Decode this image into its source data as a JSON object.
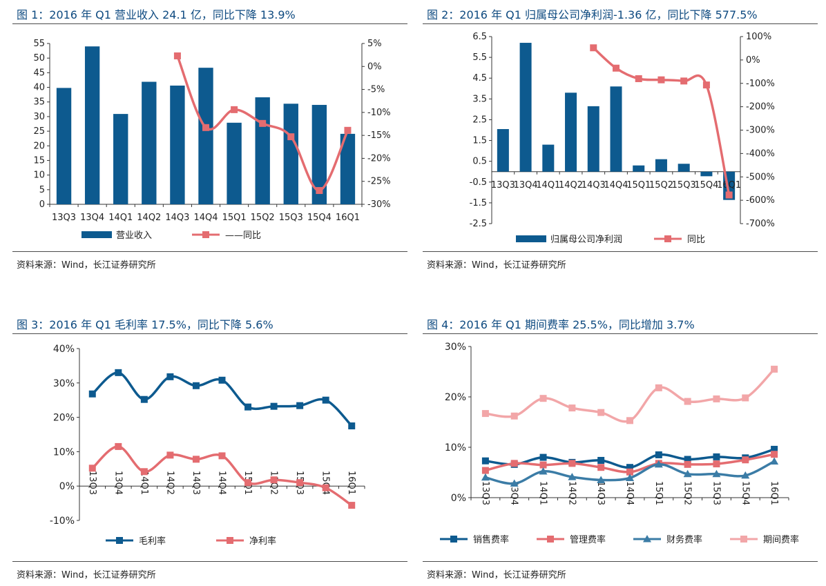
{
  "colors": {
    "navy": "#0d5a8f",
    "red": "#e46c70",
    "pink": "#f2a6a8",
    "blue2": "#3b7ca6",
    "title": "#0e4a80"
  },
  "charts": [
    {
      "title": "图 1：2016 年 Q1 营业收入 24.1 亿，同比下降 13.9%",
      "source": "资料来源：Wind，长江证券研究所",
      "legend": [
        {
          "label": "营业收入",
          "kind": "bar",
          "color": "#0d5a8f"
        },
        {
          "label": "——同比",
          "kind": "line",
          "color": "#e46c70"
        }
      ]
    },
    {
      "title": "图 2：2016 年 Q1 归属母公司净利润-1.36 亿，同比下降 577.5%",
      "source": "资料来源：Wind，长江证券研究所",
      "legend": [
        {
          "label": "归属母公司净利润",
          "kind": "bar",
          "color": "#0d5a8f"
        },
        {
          "label": "同比",
          "kind": "line",
          "color": "#e46c70"
        }
      ]
    },
    {
      "title": "图 3：2016 年 Q1 毛利率 17.5%，同比下降 5.6%",
      "source": "资料来源：Wind，长江证券研究所",
      "legend": [
        {
          "label": "毛利率",
          "kind": "line",
          "color": "#0d5a8f"
        },
        {
          "label": "净利率",
          "kind": "line",
          "color": "#e46c70"
        }
      ]
    },
    {
      "title": "图 4：2016 年 Q1 期间费率 25.5%，同比增加 3.7%",
      "source": "资料来源：Wind，长江证券研究所",
      "legend": [
        {
          "label": "销售费率",
          "kind": "line",
          "color": "#0d5a8f"
        },
        {
          "label": "管理费率",
          "kind": "line",
          "color": "#e46c70"
        },
        {
          "label": "财务费率",
          "kind": "line",
          "color": "#3b7ca6"
        },
        {
          "label": "期间费率",
          "kind": "line",
          "color": "#f2a6a8"
        }
      ]
    }
  ],
  "chart_data": [
    {
      "type": "bar",
      "categories": [
        "13Q3",
        "13Q4",
        "14Q1",
        "14Q2",
        "14Q3",
        "14Q4",
        "15Q1",
        "15Q2",
        "15Q3",
        "15Q4",
        "16Q1"
      ],
      "series": [
        {
          "name": "营业收入",
          "type": "bar",
          "axis": "left",
          "color": "#0d5a8f",
          "values": [
            39.8,
            54.0,
            30.9,
            41.9,
            40.6,
            46.7,
            27.9,
            36.6,
            34.4,
            34.0,
            24.1
          ]
        },
        {
          "name": "同比",
          "type": "line",
          "axis": "right",
          "color": "#e46c70",
          "values": [
            null,
            null,
            null,
            null,
            2.3,
            -13.3,
            -9.4,
            -12.4,
            -15.3,
            -27.0,
            -13.9
          ]
        }
      ],
      "yleft": {
        "min": 0,
        "max": 55,
        "ticks": [
          0,
          5,
          10,
          15,
          20,
          25,
          30,
          35,
          40,
          45,
          50,
          55
        ],
        "labels": [
          "0",
          "5",
          "10",
          "15",
          "20",
          "25",
          "30",
          "35",
          "40",
          "45",
          "50",
          "55"
        ]
      },
      "yright": {
        "min": -30,
        "max": 5,
        "ticks": [
          5,
          0,
          -5,
          -10,
          -15,
          -20,
          -25,
          -30
        ],
        "labels": [
          "5%",
          "0%",
          "-5%",
          "-10%",
          "-15%",
          "-20%",
          "-25%",
          "-30%"
        ]
      }
    },
    {
      "type": "bar",
      "categories": [
        "13Q3",
        "13Q4",
        "14Q1",
        "14Q2",
        "14Q3",
        "14Q4",
        "15Q1",
        "15Q2",
        "15Q3",
        "15Q4",
        "16Q1"
      ],
      "series": [
        {
          "name": "归属母公司净利润",
          "type": "bar",
          "axis": "left",
          "color": "#0d5a8f",
          "values": [
            2.05,
            6.2,
            1.3,
            3.8,
            3.15,
            4.1,
            0.3,
            0.6,
            0.38,
            -0.22,
            -1.36
          ]
        },
        {
          "name": "同比",
          "type": "line",
          "axis": "right",
          "color": "#e46c70",
          "values": [
            null,
            null,
            null,
            null,
            52,
            -35,
            -80,
            -85,
            -90,
            -107,
            -577.5
          ]
        }
      ],
      "yleft": {
        "min": -2.5,
        "max": 6.5,
        "ticks": [
          6.5,
          5.5,
          4.5,
          3.5,
          2.5,
          1.5,
          0.5,
          -0.5,
          -1.5,
          -2.5
        ],
        "labels": [
          "6.5",
          "5.5",
          "4.5",
          "3.5",
          "2.5",
          "1.5",
          "0.5",
          "-0.5",
          "-1.5",
          "-2.5"
        ]
      },
      "yright": {
        "min": -700,
        "max": 100,
        "ticks": [
          100,
          0,
          -100,
          -200,
          -300,
          -400,
          -500,
          -600,
          -700
        ],
        "labels": [
          "100%",
          "0%",
          "-100%",
          "-200%",
          "-300%",
          "-400%",
          "-500%",
          "-600%",
          "-700%"
        ]
      }
    },
    {
      "type": "line",
      "categories": [
        "13Q3",
        "13Q4",
        "14Q1",
        "14Q2",
        "14Q3",
        "14Q4",
        "15Q1",
        "15Q2",
        "15Q3",
        "15Q4",
        "16Q1"
      ],
      "series": [
        {
          "name": "毛利率",
          "color": "#0d5a8f",
          "values": [
            26.8,
            33.0,
            25.2,
            31.8,
            29.2,
            30.8,
            23.0,
            23.2,
            23.4,
            25.0,
            17.5
          ]
        },
        {
          "name": "净利率",
          "color": "#e46c70",
          "values": [
            5.2,
            11.5,
            4.2,
            9.0,
            7.8,
            8.8,
            1.0,
            1.8,
            1.0,
            -0.5,
            -5.6
          ]
        }
      ],
      "y": {
        "min": -10,
        "max": 40,
        "ticks": [
          40,
          30,
          20,
          10,
          0,
          -10
        ],
        "labels": [
          "40%",
          "30%",
          "20%",
          "10%",
          "0%",
          "-10%"
        ]
      }
    },
    {
      "type": "line",
      "categories": [
        "13Q3",
        "13Q4",
        "14Q1",
        "14Q2",
        "14Q3",
        "14Q4",
        "15Q1",
        "15Q2",
        "15Q3",
        "15Q4",
        "16Q1"
      ],
      "series": [
        {
          "name": "销售费率",
          "color": "#0d5a8f",
          "values": [
            7.3,
            6.6,
            8.0,
            7.0,
            7.4,
            6.0,
            8.5,
            7.6,
            8.1,
            7.9,
            9.6
          ]
        },
        {
          "name": "管理费率",
          "color": "#e46c70",
          "values": [
            5.4,
            6.8,
            6.5,
            6.8,
            6.0,
            5.1,
            6.8,
            6.6,
            6.7,
            7.5,
            8.6
          ]
        },
        {
          "name": "财务费率",
          "color": "#3b7ca6",
          "values": [
            4.0,
            2.8,
            5.2,
            4.1,
            3.5,
            3.9,
            6.6,
            4.7,
            4.7,
            4.4,
            7.2
          ]
        },
        {
          "name": "期间费率",
          "color": "#f2a6a8",
          "values": [
            16.7,
            16.2,
            19.7,
            17.8,
            16.9,
            15.3,
            21.8,
            19.1,
            19.6,
            19.8,
            25.5
          ]
        }
      ],
      "y": {
        "min": 0,
        "max": 30,
        "ticks": [
          30,
          20,
          10,
          0
        ],
        "labels": [
          "30%",
          "20%",
          "10%",
          "0%"
        ]
      }
    }
  ]
}
